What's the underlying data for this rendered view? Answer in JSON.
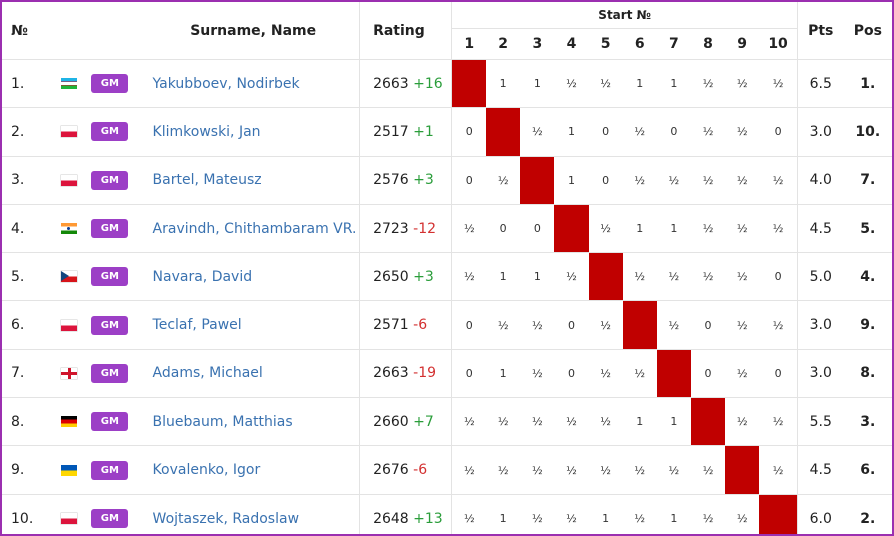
{
  "header": {
    "no": "№",
    "name": "Surname, Name",
    "rating": "Rating",
    "start_no": "Start №",
    "rounds": [
      "1",
      "2",
      "3",
      "4",
      "5",
      "6",
      "7",
      "8",
      "9",
      "10"
    ],
    "pts": "Pts",
    "pos": "Pos"
  },
  "players": [
    {
      "no": "1.",
      "flag": "uz",
      "title": "GM",
      "name": "Yakubboev, Nodirbek",
      "rating": "2663",
      "change": "+16",
      "results": [
        "",
        "1",
        "1",
        "½",
        "½",
        "1",
        "1",
        "½",
        "½",
        "½"
      ],
      "pts": "6.5",
      "pos": "1."
    },
    {
      "no": "2.",
      "flag": "pl",
      "title": "GM",
      "name": "Klimkowski, Jan",
      "rating": "2517",
      "change": "+1",
      "results": [
        "0",
        "",
        "½",
        "1",
        "0",
        "½",
        "0",
        "½",
        "½",
        "0"
      ],
      "pts": "3.0",
      "pos": "10."
    },
    {
      "no": "3.",
      "flag": "pl",
      "title": "GM",
      "name": "Bartel, Mateusz",
      "rating": "2576",
      "change": "+3",
      "results": [
        "0",
        "½",
        "",
        "1",
        "0",
        "½",
        "½",
        "½",
        "½",
        "½"
      ],
      "pts": "4.0",
      "pos": "7."
    },
    {
      "no": "4.",
      "flag": "in",
      "title": "GM",
      "name": "Aravindh, Chithambaram VR.",
      "rating": "2723",
      "change": "-12",
      "results": [
        "½",
        "0",
        "0",
        "",
        "½",
        "1",
        "1",
        "½",
        "½",
        "½"
      ],
      "pts": "4.5",
      "pos": "5."
    },
    {
      "no": "5.",
      "flag": "cz",
      "title": "GM",
      "name": "Navara, David",
      "rating": "2650",
      "change": "+3",
      "results": [
        "½",
        "1",
        "1",
        "½",
        "",
        "½",
        "½",
        "½",
        "½",
        "0"
      ],
      "pts": "5.0",
      "pos": "4."
    },
    {
      "no": "6.",
      "flag": "pl",
      "title": "GM",
      "name": "Teclaf, Pawel",
      "rating": "2571",
      "change": "-6",
      "results": [
        "0",
        "½",
        "½",
        "0",
        "½",
        "",
        "½",
        "0",
        "½",
        "½"
      ],
      "pts": "3.0",
      "pos": "9."
    },
    {
      "no": "7.",
      "flag": "en",
      "title": "GM",
      "name": "Adams, Michael",
      "rating": "2663",
      "change": "-19",
      "results": [
        "0",
        "1",
        "½",
        "0",
        "½",
        "½",
        "",
        "0",
        "½",
        "0"
      ],
      "pts": "3.0",
      "pos": "8."
    },
    {
      "no": "8.",
      "flag": "de",
      "title": "GM",
      "name": "Bluebaum, Matthias",
      "rating": "2660",
      "change": "+7",
      "results": [
        "½",
        "½",
        "½",
        "½",
        "½",
        "1",
        "1",
        "",
        "½",
        "½"
      ],
      "pts": "5.5",
      "pos": "3."
    },
    {
      "no": "9.",
      "flag": "ua",
      "title": "GM",
      "name": "Kovalenko, Igor",
      "rating": "2676",
      "change": "-6",
      "results": [
        "½",
        "½",
        "½",
        "½",
        "½",
        "½",
        "½",
        "½",
        "",
        "½"
      ],
      "pts": "4.5",
      "pos": "6."
    },
    {
      "no": "10.",
      "flag": "pl",
      "title": "GM",
      "name": "Wojtaszek, Radoslaw",
      "rating": "2648",
      "change": "+13",
      "results": [
        "½",
        "1",
        "½",
        "½",
        "1",
        "½",
        "1",
        "½",
        "½",
        ""
      ],
      "pts": "6.0",
      "pos": "2."
    }
  ],
  "colors": {
    "border": "#9b2fb0",
    "self_cell": "#c00000",
    "title_badge": "#9c3fc6",
    "name_link": "#3a72b0",
    "rating_up": "#2a9d3a",
    "rating_down": "#d33030"
  }
}
